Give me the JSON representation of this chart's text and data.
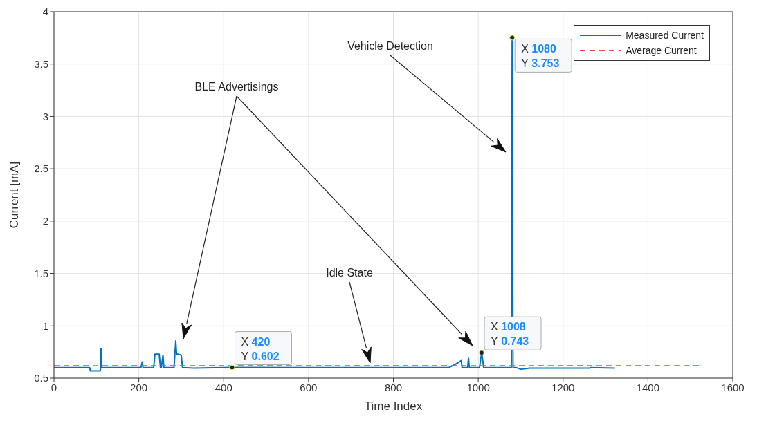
{
  "chart_data": {
    "type": "line",
    "xlabel": "Time Index",
    "ylabel": "Current [mA]",
    "xlim": [
      0,
      1600
    ],
    "xticks": [
      0,
      200,
      400,
      600,
      800,
      1000,
      1200,
      1400,
      1600
    ],
    "ylim": [
      0.5,
      4
    ],
    "yticks": [
      0.5,
      1,
      1.5,
      2,
      2.5,
      3,
      3.5,
      4
    ],
    "grid": true,
    "legend": "top right",
    "marker": "none",
    "series": [
      {
        "name": "Measured Current",
        "color": "#0072bd",
        "line_style": "solid",
        "x": [
          0,
          84,
          86,
          109,
          110,
          111,
          112,
          205,
          208,
          210,
          235,
          238,
          248,
          251,
          253,
          257,
          259,
          261,
          283,
          287,
          289,
          292,
          300,
          303,
          330,
          420,
          600,
          800,
          930,
          945,
          960,
          962,
          975,
          977,
          979,
          1003,
          1008,
          1013,
          1078,
          1080,
          1082,
          1090,
          1100,
          1120,
          1200,
          1263,
          1265,
          1322
        ],
        "values": [
          0.6,
          0.6,
          0.57,
          0.57,
          0.6,
          0.78,
          0.6,
          0.6,
          0.655,
          0.6,
          0.6,
          0.73,
          0.73,
          0.6,
          0.6,
          0.72,
          0.6,
          0.6,
          0.6,
          0.856,
          0.73,
          0.73,
          0.72,
          0.6,
          0.595,
          0.602,
          0.6,
          0.6,
          0.6,
          0.63,
          0.668,
          0.6,
          0.6,
          0.69,
          0.6,
          0.6,
          0.743,
          0.6,
          0.6,
          3.753,
          0.6,
          0.6,
          0.585,
          0.595,
          0.595,
          0.595,
          0.6,
          0.595
        ]
      },
      {
        "name": "Average Current",
        "color": "#ff4040",
        "line_style": "dashed",
        "x": [
          0,
          1520
        ],
        "values": [
          0.62,
          0.62
        ]
      }
    ],
    "annotations": [
      "BLE Advertisings",
      "Vehicle Detection",
      "Idle State",
      {
        "text": "X 420\nY 0.602",
        "x": 420,
        "y": 0.602
      },
      {
        "text": "X 1008\nY 0.743",
        "x": 1008,
        "y": 0.743
      },
      {
        "text": "X 1080\nY 3.753",
        "x": 1080,
        "y": 3.753
      }
    ]
  }
}
